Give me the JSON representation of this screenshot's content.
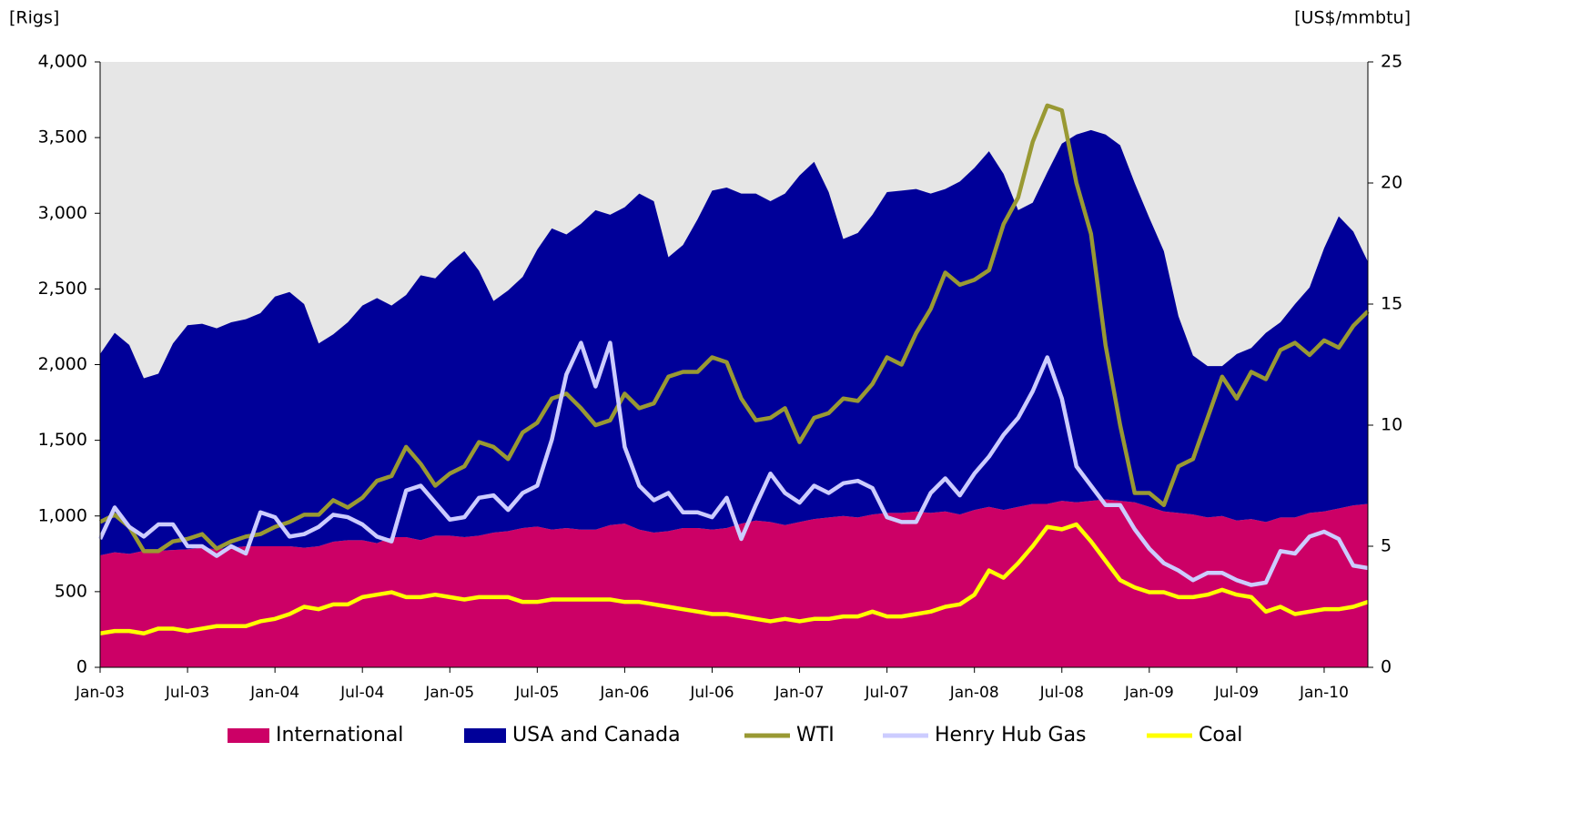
{
  "chart_data": {
    "type": "area",
    "y_axis_label": "[Rigs]",
    "y2_axis_label": "[US$/mmbtu]",
    "categories": [
      "Jan-03",
      null,
      null,
      null,
      null,
      null,
      "Jul-03",
      null,
      null,
      null,
      null,
      null,
      "Jan-04",
      null,
      null,
      null,
      null,
      null,
      "Jul-04",
      null,
      null,
      null,
      null,
      null,
      "Jan-05",
      null,
      null,
      null,
      null,
      null,
      "Jul-05",
      null,
      null,
      null,
      null,
      null,
      "Jan-06",
      null,
      null,
      null,
      null,
      null,
      "Jul-06",
      null,
      null,
      null,
      null,
      null,
      "Jan-07",
      null,
      null,
      null,
      null,
      null,
      "Jul-07",
      null,
      null,
      null,
      null,
      null,
      "Jan-08",
      null,
      null,
      null,
      null,
      null,
      "Jul-08",
      null,
      null,
      null,
      null,
      null,
      "Jan-09",
      null,
      null,
      null,
      null,
      null,
      "Jul-09",
      null,
      null,
      null,
      null,
      null,
      "Jan-10",
      null,
      null,
      null
    ],
    "stacked": true,
    "series": [
      {
        "name": "International",
        "type": "area",
        "color": "#cc0066",
        "values": [
          740,
          760,
          750,
          770,
          770,
          775,
          780,
          790,
          780,
          790,
          800,
          800,
          800,
          800,
          790,
          800,
          830,
          840,
          840,
          820,
          860,
          860,
          840,
          870,
          870,
          860,
          870,
          890,
          900,
          920,
          930,
          910,
          920,
          910,
          910,
          940,
          950,
          910,
          890,
          900,
          920,
          920,
          910,
          920,
          950,
          970,
          960,
          940,
          960,
          980,
          990,
          1000,
          990,
          1010,
          1020,
          1020,
          1030,
          1020,
          1030,
          1010,
          1040,
          1060,
          1040,
          1060,
          1080,
          1080,
          1100,
          1090,
          1100,
          1110,
          1100,
          1090,
          1060,
          1030,
          1020,
          1010,
          990,
          1000,
          970,
          980,
          960,
          990,
          990,
          1020,
          1030,
          1050,
          1070,
          1080
        ]
      },
      {
        "name": "USA and Canada",
        "type": "area",
        "color": "#000099",
        "values": [
          1330,
          1450,
          1380,
          1140,
          1170,
          1365,
          1480,
          1480,
          1460,
          1490,
          1500,
          1540,
          1650,
          1680,
          1610,
          1340,
          1370,
          1440,
          1550,
          1620,
          1530,
          1600,
          1750,
          1700,
          1800,
          1890,
          1750,
          1530,
          1590,
          1660,
          1830,
          1990,
          1940,
          2020,
          2110,
          2050,
          2090,
          2220,
          2190,
          1810,
          1870,
          2040,
          2240,
          2250,
          2180,
          2160,
          2120,
          2190,
          2290,
          2360,
          2150,
          1830,
          1880,
          1980,
          2120,
          2130,
          2130,
          2110,
          2130,
          2200,
          2260,
          2350,
          2220,
          1960,
          1990,
          2190,
          2360,
          2430,
          2450,
          2410,
          2350,
          2110,
          1910,
          1720,
          1300,
          1050,
          1000,
          990,
          1100,
          1130,
          1250,
          1290,
          1410,
          1490,
          1740,
          1930,
          1810,
          1600
        ]
      },
      {
        "name": "WTI",
        "type": "line",
        "axis": "y2",
        "color": "#999933",
        "values": [
          6.0,
          6.3,
          5.8,
          4.8,
          4.8,
          5.2,
          5.3,
          5.5,
          4.9,
          5.2,
          5.4,
          5.5,
          5.8,
          6.0,
          6.3,
          6.3,
          6.9,
          6.6,
          7.0,
          7.7,
          7.9,
          9.1,
          8.4,
          7.5,
          8.0,
          8.3,
          9.3,
          9.1,
          8.6,
          9.7,
          10.1,
          11.1,
          11.3,
          10.7,
          10.0,
          10.2,
          11.3,
          10.7,
          10.9,
          12.0,
          12.2,
          12.2,
          12.8,
          12.6,
          11.1,
          10.2,
          10.3,
          10.7,
          9.3,
          10.3,
          10.5,
          11.1,
          11.0,
          11.7,
          12.8,
          12.5,
          13.8,
          14.8,
          16.3,
          15.8,
          16.0,
          16.4,
          18.3,
          19.4,
          21.7,
          23.2,
          23.0,
          20.0,
          17.9,
          13.3,
          10.0,
          7.2,
          7.2,
          6.7,
          8.3,
          8.6,
          10.3,
          12.0,
          11.1,
          12.2,
          11.9,
          13.1,
          13.4,
          12.9,
          13.5,
          13.2,
          14.1,
          14.7
        ]
      },
      {
        "name": "Henry Hub Gas",
        "type": "line",
        "axis": "y2",
        "color": "#ccccff",
        "values": [
          5.3,
          6.6,
          5.8,
          5.4,
          5.9,
          5.9,
          5.0,
          5.0,
          4.6,
          5.0,
          4.7,
          6.4,
          6.2,
          5.4,
          5.5,
          5.8,
          6.3,
          6.2,
          5.9,
          5.4,
          5.2,
          7.3,
          7.5,
          6.8,
          6.1,
          6.2,
          7.0,
          7.1,
          6.5,
          7.2,
          7.5,
          9.4,
          12.1,
          13.4,
          11.6,
          13.4,
          9.1,
          7.5,
          6.9,
          7.2,
          6.4,
          6.4,
          6.2,
          7.0,
          5.3,
          6.7,
          8.0,
          7.2,
          6.8,
          7.5,
          7.2,
          7.6,
          7.7,
          7.4,
          6.2,
          6.0,
          6.0,
          7.2,
          7.8,
          7.1,
          8.0,
          8.7,
          9.6,
          10.3,
          11.4,
          12.8,
          11.1,
          8.3,
          7.5,
          6.7,
          6.7,
          5.7,
          4.9,
          4.3,
          4.0,
          3.6,
          3.9,
          3.9,
          3.6,
          3.4,
          3.5,
          4.8,
          4.7,
          5.4,
          5.6,
          5.3,
          4.2,
          4.1
        ]
      },
      {
        "name": "Coal",
        "type": "line",
        "axis": "y2",
        "color": "#ffff00",
        "values": [
          1.4,
          1.5,
          1.5,
          1.4,
          1.6,
          1.6,
          1.5,
          1.6,
          1.7,
          1.7,
          1.7,
          1.9,
          2.0,
          2.2,
          2.5,
          2.4,
          2.6,
          2.6,
          2.9,
          3.0,
          3.1,
          2.9,
          2.9,
          3.0,
          2.9,
          2.8,
          2.9,
          2.9,
          2.9,
          2.7,
          2.7,
          2.8,
          2.8,
          2.8,
          2.8,
          2.8,
          2.7,
          2.7,
          2.6,
          2.5,
          2.4,
          2.3,
          2.2,
          2.2,
          2.1,
          2.0,
          1.9,
          2.0,
          1.9,
          2.0,
          2.0,
          2.1,
          2.1,
          2.3,
          2.1,
          2.1,
          2.2,
          2.3,
          2.5,
          2.6,
          3.0,
          4.0,
          3.7,
          4.3,
          5.0,
          5.8,
          5.7,
          5.9,
          5.2,
          4.4,
          3.6,
          3.3,
          3.1,
          3.1,
          2.9,
          2.9,
          3.0,
          3.2,
          3.0,
          2.9,
          2.3,
          2.5,
          2.2,
          2.3,
          2.4,
          2.4,
          2.5,
          2.7
        ]
      }
    ],
    "ylim": [
      0,
      4000
    ],
    "yticks": [
      0,
      500,
      {
        "value": 1000,
        "label": "1,000"
      },
      {
        "value": 1500,
        "label": "1,500"
      },
      {
        "value": 2000,
        "label": "2,000"
      },
      {
        "value": 2500,
        "label": "2,500"
      },
      {
        "value": 3000,
        "label": "3,000"
      },
      {
        "value": 3500,
        "label": "3,500"
      },
      {
        "value": 4000,
        "label": "4,000"
      }
    ],
    "y2lim": [
      0,
      25
    ],
    "y2ticks": [
      0,
      5,
      10,
      15,
      20,
      25
    ],
    "plot_background": "#e6e6e6",
    "legend": "bottom"
  }
}
